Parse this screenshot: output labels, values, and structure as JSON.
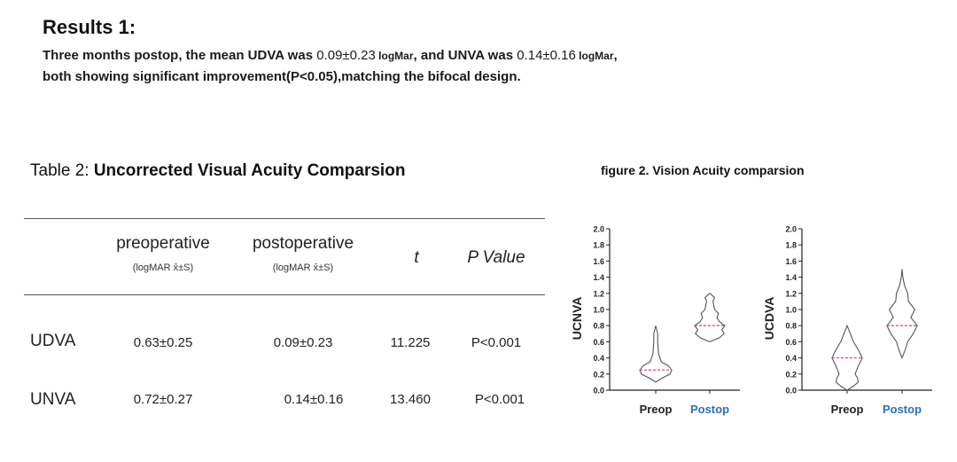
{
  "results": {
    "heading": "Results 1:",
    "line1_parts": [
      "Three months postop, the mean UDVA was ",
      "0.09±0.23",
      " logMar",
      ", and UNVA was ",
      "0.14±0.16",
      " logMar",
      ","
    ],
    "line2": "both showing significant improvement(P<0.05),matching the bifocal design."
  },
  "table": {
    "caption_prefix": "Table 2: ",
    "caption_title": "Uncorrected  Visual Acuity Comparsion",
    "headers": {
      "preoperative": "preoperative",
      "preoperative_sub": "(logMAR x̄±S)",
      "postoperative": "postoperative",
      "postoperative_sub": "(logMAR x̄±S)",
      "t": "t",
      "p": "P Value"
    },
    "rows": [
      {
        "label": "UDVA",
        "pre": "0.63±0.25",
        "post": "0.09±0.23",
        "t": "11.225",
        "p": "P<0.001"
      },
      {
        "label": "UNVA",
        "pre": "0.72±0.27",
        "post": "0.14±0.16",
        "t": "13.460",
        "p": "P<0.001"
      }
    ]
  },
  "figure": {
    "caption": "figure 2.  Vision Acuity comparsion",
    "colors": {
      "preop_label": "#222222",
      "postop_label": "#2f6fb5",
      "median": "#e0506a",
      "outline": "#555555"
    }
  },
  "chart_data": [
    {
      "type": "violin",
      "ylabel": "UCNVA",
      "ylim": [
        0,
        2.0
      ],
      "yticks": [
        "0.0",
        "0.2",
        "0.4",
        "0.6",
        "0.8",
        "1.0",
        "1.2",
        "1.4",
        "1.6",
        "1.8",
        "2.0"
      ],
      "categories": [
        "Preop",
        "Postop"
      ],
      "series": [
        {
          "category": "Preop",
          "min": 0.1,
          "max": 0.8,
          "median": 0.25,
          "profile": [
            [
              0.1,
              0.0
            ],
            [
              0.15,
              0.4
            ],
            [
              0.2,
              0.9
            ],
            [
              0.25,
              1.0
            ],
            [
              0.3,
              0.8
            ],
            [
              0.35,
              0.35
            ],
            [
              0.45,
              0.18
            ],
            [
              0.6,
              0.12
            ],
            [
              0.7,
              0.12
            ],
            [
              0.8,
              0.0
            ]
          ]
        },
        {
          "category": "Postop",
          "min": 0.6,
          "max": 1.2,
          "median": 0.8,
          "profile": [
            [
              0.6,
              0.0
            ],
            [
              0.65,
              0.6
            ],
            [
              0.7,
              0.9
            ],
            [
              0.75,
              0.75
            ],
            [
              0.8,
              0.95
            ],
            [
              0.85,
              0.6
            ],
            [
              0.9,
              0.45
            ],
            [
              0.95,
              0.55
            ],
            [
              1.0,
              0.3
            ],
            [
              1.05,
              0.25
            ],
            [
              1.1,
              0.2
            ],
            [
              1.15,
              0.3
            ],
            [
              1.2,
              0.0
            ]
          ]
        }
      ]
    },
    {
      "type": "violin",
      "ylabel": "UCDVA",
      "ylim": [
        0,
        2.0
      ],
      "yticks": [
        "0.0",
        "0.2",
        "0.4",
        "0.6",
        "0.8",
        "1.0",
        "1.2",
        "1.4",
        "1.6",
        "1.8",
        "2.0"
      ],
      "categories": [
        "Preop",
        "Postop"
      ],
      "series": [
        {
          "category": "Preop",
          "min": 0.0,
          "max": 0.8,
          "median": 0.4,
          "profile": [
            [
              0.0,
              0.0
            ],
            [
              0.05,
              0.4
            ],
            [
              0.1,
              0.7
            ],
            [
              0.15,
              0.65
            ],
            [
              0.2,
              0.5
            ],
            [
              0.3,
              0.7
            ],
            [
              0.4,
              0.95
            ],
            [
              0.5,
              0.7
            ],
            [
              0.6,
              0.4
            ],
            [
              0.7,
              0.2
            ],
            [
              0.8,
              0.0
            ]
          ]
        },
        {
          "category": "Postop",
          "min": 0.4,
          "max": 1.5,
          "median": 0.8,
          "profile": [
            [
              0.4,
              0.0
            ],
            [
              0.5,
              0.2
            ],
            [
              0.6,
              0.35
            ],
            [
              0.7,
              0.7
            ],
            [
              0.8,
              0.95
            ],
            [
              0.9,
              0.55
            ],
            [
              1.0,
              0.8
            ],
            [
              1.1,
              0.4
            ],
            [
              1.2,
              0.35
            ],
            [
              1.3,
              0.15
            ],
            [
              1.4,
              0.05
            ],
            [
              1.5,
              0.0
            ]
          ]
        }
      ]
    }
  ]
}
